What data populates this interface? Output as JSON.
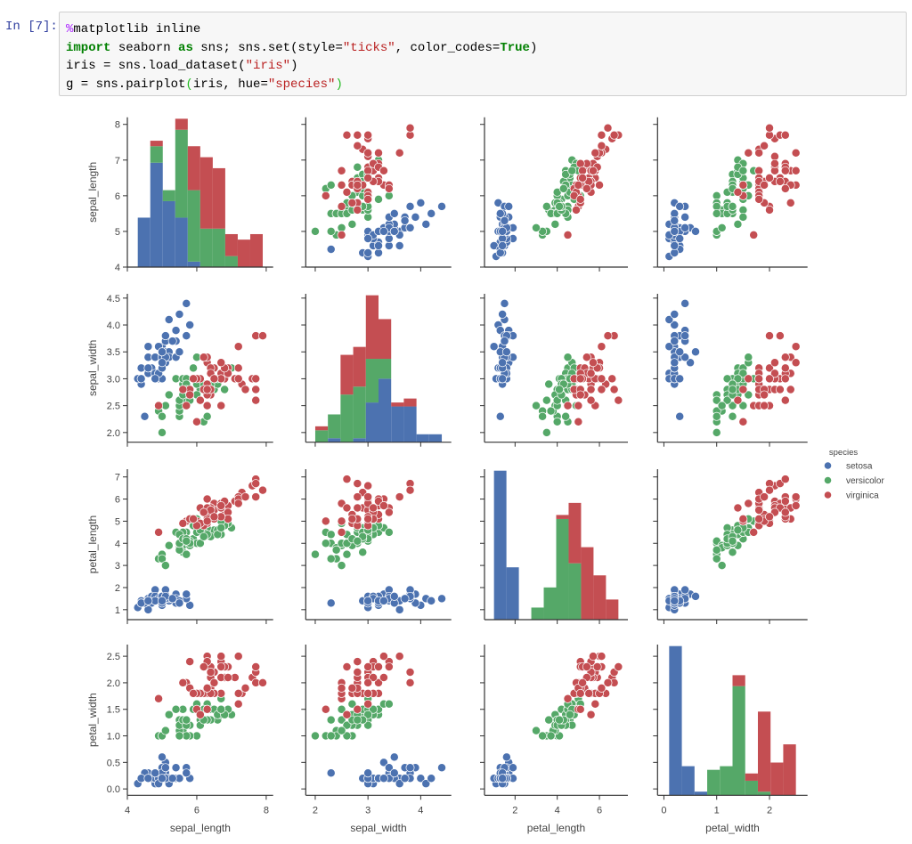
{
  "cell": {
    "prompt": "In [7]:",
    "lines": [
      [
        {
          "t": "%",
          "c": "magic"
        },
        {
          "t": "matplotlib inline",
          "c": ""
        }
      ],
      [
        {
          "t": "import",
          "c": "kw"
        },
        {
          "t": " seaborn ",
          "c": ""
        },
        {
          "t": "as",
          "c": "kw"
        },
        {
          "t": " sns; sns.set(style=",
          "c": ""
        },
        {
          "t": "\"ticks\"",
          "c": "str"
        },
        {
          "t": ", color_codes=",
          "c": ""
        },
        {
          "t": "True",
          "c": "kw"
        },
        {
          "t": ")",
          "c": ""
        }
      ],
      [
        {
          "t": "iris = sns.load_dataset(",
          "c": ""
        },
        {
          "t": "\"iris\"",
          "c": "str"
        },
        {
          "t": ")",
          "c": ""
        }
      ],
      [
        {
          "t": "g = sns.pairplot",
          "c": ""
        },
        {
          "t": "(",
          "c": "paren"
        },
        {
          "t": "iris, hue=",
          "c": ""
        },
        {
          "t": "\"species\"",
          "c": "str"
        },
        {
          "t": ")",
          "c": "paren"
        }
      ]
    ]
  },
  "chart_data": {
    "type": "scatter",
    "title": "",
    "variables": [
      "sepal_length",
      "sepal_width",
      "petal_length",
      "petal_width"
    ],
    "axis_ranges": {
      "sepal_length": [
        4.0,
        8.2
      ],
      "sepal_width": [
        1.82,
        4.58
      ],
      "petal_length": [
        0.55,
        7.35
      ],
      "petal_width": [
        -0.12,
        2.72
      ]
    },
    "y_ticks": {
      "sepal_length": [
        "4",
        "5",
        "6",
        "7",
        "8"
      ],
      "sepal_width": [
        "2.0",
        "2.5",
        "3.0",
        "3.5",
        "4.0",
        "4.5"
      ],
      "petal_length": [
        "1",
        "2",
        "3",
        "4",
        "5",
        "6",
        "7"
      ],
      "petal_width": [
        "0.0",
        "0.5",
        "1.0",
        "1.5",
        "2.0",
        "2.5"
      ]
    },
    "x_ticks": {
      "sepal_length": [
        "4",
        "6",
        "8"
      ],
      "sepal_width": [
        "2",
        "3",
        "4"
      ],
      "petal_length": [
        "2",
        "4",
        "6"
      ],
      "petal_width": [
        "0",
        "1",
        "2"
      ]
    },
    "diagonal": "stacked histogram, 10 bins",
    "grid": false,
    "legend": {
      "title": "species",
      "placement": "right",
      "entries": [
        "setosa",
        "versicolor",
        "virginica"
      ]
    },
    "colors": {
      "setosa": "#4C72B0",
      "versicolor": "#55A868",
      "virginica": "#C44E52"
    },
    "series": [
      {
        "name": "setosa",
        "rows": [
          [
            5.1,
            3.5,
            1.4,
            0.2
          ],
          [
            4.9,
            3.0,
            1.4,
            0.2
          ],
          [
            4.7,
            3.2,
            1.3,
            0.2
          ],
          [
            4.6,
            3.1,
            1.5,
            0.2
          ],
          [
            5.0,
            3.6,
            1.4,
            0.2
          ],
          [
            5.4,
            3.9,
            1.7,
            0.4
          ],
          [
            4.6,
            3.4,
            1.4,
            0.3
          ],
          [
            5.0,
            3.4,
            1.5,
            0.2
          ],
          [
            4.4,
            2.9,
            1.4,
            0.2
          ],
          [
            4.9,
            3.1,
            1.5,
            0.1
          ],
          [
            5.4,
            3.7,
            1.5,
            0.2
          ],
          [
            4.8,
            3.4,
            1.6,
            0.2
          ],
          [
            4.8,
            3.0,
            1.4,
            0.1
          ],
          [
            4.3,
            3.0,
            1.1,
            0.1
          ],
          [
            5.8,
            4.0,
            1.2,
            0.2
          ],
          [
            5.7,
            4.4,
            1.5,
            0.4
          ],
          [
            5.4,
            3.9,
            1.3,
            0.4
          ],
          [
            5.1,
            3.5,
            1.4,
            0.3
          ],
          [
            5.7,
            3.8,
            1.7,
            0.3
          ],
          [
            5.1,
            3.8,
            1.5,
            0.3
          ],
          [
            5.4,
            3.4,
            1.7,
            0.2
          ],
          [
            5.1,
            3.7,
            1.5,
            0.4
          ],
          [
            4.6,
            3.6,
            1.0,
            0.2
          ],
          [
            5.1,
            3.3,
            1.7,
            0.5
          ],
          [
            4.8,
            3.4,
            1.9,
            0.2
          ],
          [
            5.0,
            3.0,
            1.6,
            0.2
          ],
          [
            5.0,
            3.4,
            1.6,
            0.4
          ],
          [
            5.2,
            3.5,
            1.5,
            0.2
          ],
          [
            5.2,
            3.4,
            1.4,
            0.2
          ],
          [
            4.7,
            3.2,
            1.6,
            0.2
          ],
          [
            4.8,
            3.1,
            1.6,
            0.2
          ],
          [
            5.4,
            3.4,
            1.5,
            0.4
          ],
          [
            5.2,
            4.1,
            1.5,
            0.1
          ],
          [
            5.5,
            4.2,
            1.4,
            0.2
          ],
          [
            4.9,
            3.1,
            1.5,
            0.2
          ],
          [
            5.0,
            3.2,
            1.2,
            0.2
          ],
          [
            5.5,
            3.5,
            1.3,
            0.2
          ],
          [
            4.9,
            3.6,
            1.4,
            0.1
          ],
          [
            4.4,
            3.0,
            1.3,
            0.2
          ],
          [
            5.1,
            3.4,
            1.5,
            0.2
          ],
          [
            5.0,
            3.5,
            1.3,
            0.3
          ],
          [
            4.5,
            2.3,
            1.3,
            0.3
          ],
          [
            4.4,
            3.2,
            1.3,
            0.2
          ],
          [
            5.0,
            3.5,
            1.6,
            0.6
          ],
          [
            5.1,
            3.8,
            1.9,
            0.4
          ],
          [
            4.8,
            3.0,
            1.4,
            0.3
          ],
          [
            5.1,
            3.8,
            1.6,
            0.2
          ],
          [
            4.6,
            3.2,
            1.4,
            0.2
          ],
          [
            5.3,
            3.7,
            1.5,
            0.2
          ],
          [
            5.0,
            3.3,
            1.4,
            0.2
          ]
        ]
      },
      {
        "name": "versicolor",
        "rows": [
          [
            7.0,
            3.2,
            4.7,
            1.4
          ],
          [
            6.4,
            3.2,
            4.5,
            1.5
          ],
          [
            6.9,
            3.1,
            4.9,
            1.5
          ],
          [
            5.5,
            2.3,
            4.0,
            1.3
          ],
          [
            6.5,
            2.8,
            4.6,
            1.5
          ],
          [
            5.7,
            2.8,
            4.5,
            1.3
          ],
          [
            6.3,
            3.3,
            4.7,
            1.6
          ],
          [
            4.9,
            2.4,
            3.3,
            1.0
          ],
          [
            6.6,
            2.9,
            4.6,
            1.3
          ],
          [
            5.2,
            2.7,
            3.9,
            1.4
          ],
          [
            5.0,
            2.0,
            3.5,
            1.0
          ],
          [
            5.9,
            3.0,
            4.2,
            1.5
          ],
          [
            6.0,
            2.2,
            4.0,
            1.0
          ],
          [
            6.1,
            2.9,
            4.7,
            1.4
          ],
          [
            5.6,
            2.9,
            3.6,
            1.3
          ],
          [
            6.7,
            3.1,
            4.4,
            1.4
          ],
          [
            5.6,
            3.0,
            4.5,
            1.5
          ],
          [
            5.8,
            2.7,
            4.1,
            1.0
          ],
          [
            6.2,
            2.2,
            4.5,
            1.5
          ],
          [
            5.6,
            2.5,
            3.9,
            1.1
          ],
          [
            5.9,
            3.2,
            4.8,
            1.8
          ],
          [
            6.1,
            2.8,
            4.0,
            1.3
          ],
          [
            6.3,
            2.5,
            4.9,
            1.5
          ],
          [
            6.1,
            2.8,
            4.7,
            1.2
          ],
          [
            6.4,
            2.9,
            4.3,
            1.3
          ],
          [
            6.6,
            3.0,
            4.4,
            1.4
          ],
          [
            6.8,
            2.8,
            4.8,
            1.4
          ],
          [
            6.7,
            3.0,
            5.0,
            1.7
          ],
          [
            6.0,
            2.9,
            4.5,
            1.5
          ],
          [
            5.7,
            2.6,
            3.5,
            1.0
          ],
          [
            5.5,
            2.4,
            3.8,
            1.1
          ],
          [
            5.5,
            2.4,
            3.7,
            1.0
          ],
          [
            5.8,
            2.7,
            3.9,
            1.2
          ],
          [
            6.0,
            2.7,
            5.1,
            1.6
          ],
          [
            5.4,
            3.0,
            4.5,
            1.5
          ],
          [
            6.0,
            3.4,
            4.5,
            1.6
          ],
          [
            6.7,
            3.1,
            4.7,
            1.5
          ],
          [
            6.3,
            2.3,
            4.4,
            1.3
          ],
          [
            5.6,
            3.0,
            4.1,
            1.3
          ],
          [
            5.5,
            2.5,
            4.0,
            1.3
          ],
          [
            5.5,
            2.6,
            4.4,
            1.2
          ],
          [
            6.1,
            3.0,
            4.6,
            1.4
          ],
          [
            5.8,
            2.6,
            4.0,
            1.2
          ],
          [
            5.0,
            2.3,
            3.3,
            1.0
          ],
          [
            5.6,
            2.7,
            4.2,
            1.3
          ],
          [
            5.7,
            3.0,
            4.2,
            1.2
          ],
          [
            5.7,
            2.9,
            4.2,
            1.3
          ],
          [
            6.2,
            2.9,
            4.3,
            1.3
          ],
          [
            5.1,
            2.5,
            3.0,
            1.1
          ],
          [
            5.7,
            2.8,
            4.1,
            1.3
          ]
        ]
      },
      {
        "name": "virginica",
        "rows": [
          [
            6.3,
            3.3,
            6.0,
            2.5
          ],
          [
            5.8,
            2.7,
            5.1,
            1.9
          ],
          [
            7.1,
            3.0,
            5.9,
            2.1
          ],
          [
            6.3,
            2.9,
            5.6,
            1.8
          ],
          [
            6.5,
            3.0,
            5.8,
            2.2
          ],
          [
            7.6,
            3.0,
            6.6,
            2.1
          ],
          [
            4.9,
            2.5,
            4.5,
            1.7
          ],
          [
            7.3,
            2.9,
            6.3,
            1.8
          ],
          [
            6.7,
            2.5,
            5.8,
            1.8
          ],
          [
            7.2,
            3.6,
            6.1,
            2.5
          ],
          [
            6.5,
            3.2,
            5.1,
            2.0
          ],
          [
            6.4,
            2.7,
            5.3,
            1.9
          ],
          [
            6.8,
            3.0,
            5.5,
            2.1
          ],
          [
            5.7,
            2.5,
            5.0,
            2.0
          ],
          [
            5.8,
            2.8,
            5.1,
            2.4
          ],
          [
            6.4,
            3.2,
            5.3,
            2.3
          ],
          [
            6.5,
            3.0,
            5.5,
            1.8
          ],
          [
            7.7,
            3.8,
            6.7,
            2.2
          ],
          [
            7.7,
            2.6,
            6.9,
            2.3
          ],
          [
            6.0,
            2.2,
            5.0,
            1.5
          ],
          [
            6.9,
            3.2,
            5.7,
            2.3
          ],
          [
            5.6,
            2.8,
            4.9,
            2.0
          ],
          [
            7.7,
            2.8,
            6.7,
            2.0
          ],
          [
            6.3,
            2.7,
            4.9,
            1.8
          ],
          [
            6.7,
            3.3,
            5.7,
            2.1
          ],
          [
            7.2,
            3.2,
            6.0,
            1.8
          ],
          [
            6.2,
            2.8,
            4.8,
            1.8
          ],
          [
            6.1,
            3.0,
            4.9,
            1.8
          ],
          [
            6.4,
            2.8,
            5.6,
            2.1
          ],
          [
            7.2,
            3.0,
            5.8,
            1.6
          ],
          [
            7.4,
            2.8,
            6.1,
            1.9
          ],
          [
            7.9,
            3.8,
            6.4,
            2.0
          ],
          [
            6.4,
            2.8,
            5.6,
            2.2
          ],
          [
            6.3,
            2.8,
            5.1,
            1.5
          ],
          [
            6.1,
            2.6,
            5.6,
            1.4
          ],
          [
            7.7,
            3.0,
            6.1,
            2.3
          ],
          [
            6.3,
            3.4,
            5.6,
            2.4
          ],
          [
            6.4,
            3.1,
            5.5,
            1.8
          ],
          [
            6.0,
            3.0,
            4.8,
            1.8
          ],
          [
            6.9,
            3.1,
            5.4,
            2.1
          ],
          [
            6.7,
            3.1,
            5.6,
            2.4
          ],
          [
            6.9,
            3.1,
            5.1,
            2.3
          ],
          [
            5.8,
            2.7,
            5.1,
            1.9
          ],
          [
            6.8,
            3.2,
            5.9,
            2.3
          ],
          [
            6.7,
            3.3,
            5.7,
            2.5
          ],
          [
            6.7,
            3.0,
            5.2,
            2.3
          ],
          [
            6.3,
            2.5,
            5.0,
            1.9
          ],
          [
            6.5,
            3.0,
            5.2,
            2.0
          ],
          [
            6.2,
            3.4,
            5.4,
            2.3
          ],
          [
            5.9,
            3.0,
            5.1,
            1.8
          ]
        ]
      }
    ]
  }
}
